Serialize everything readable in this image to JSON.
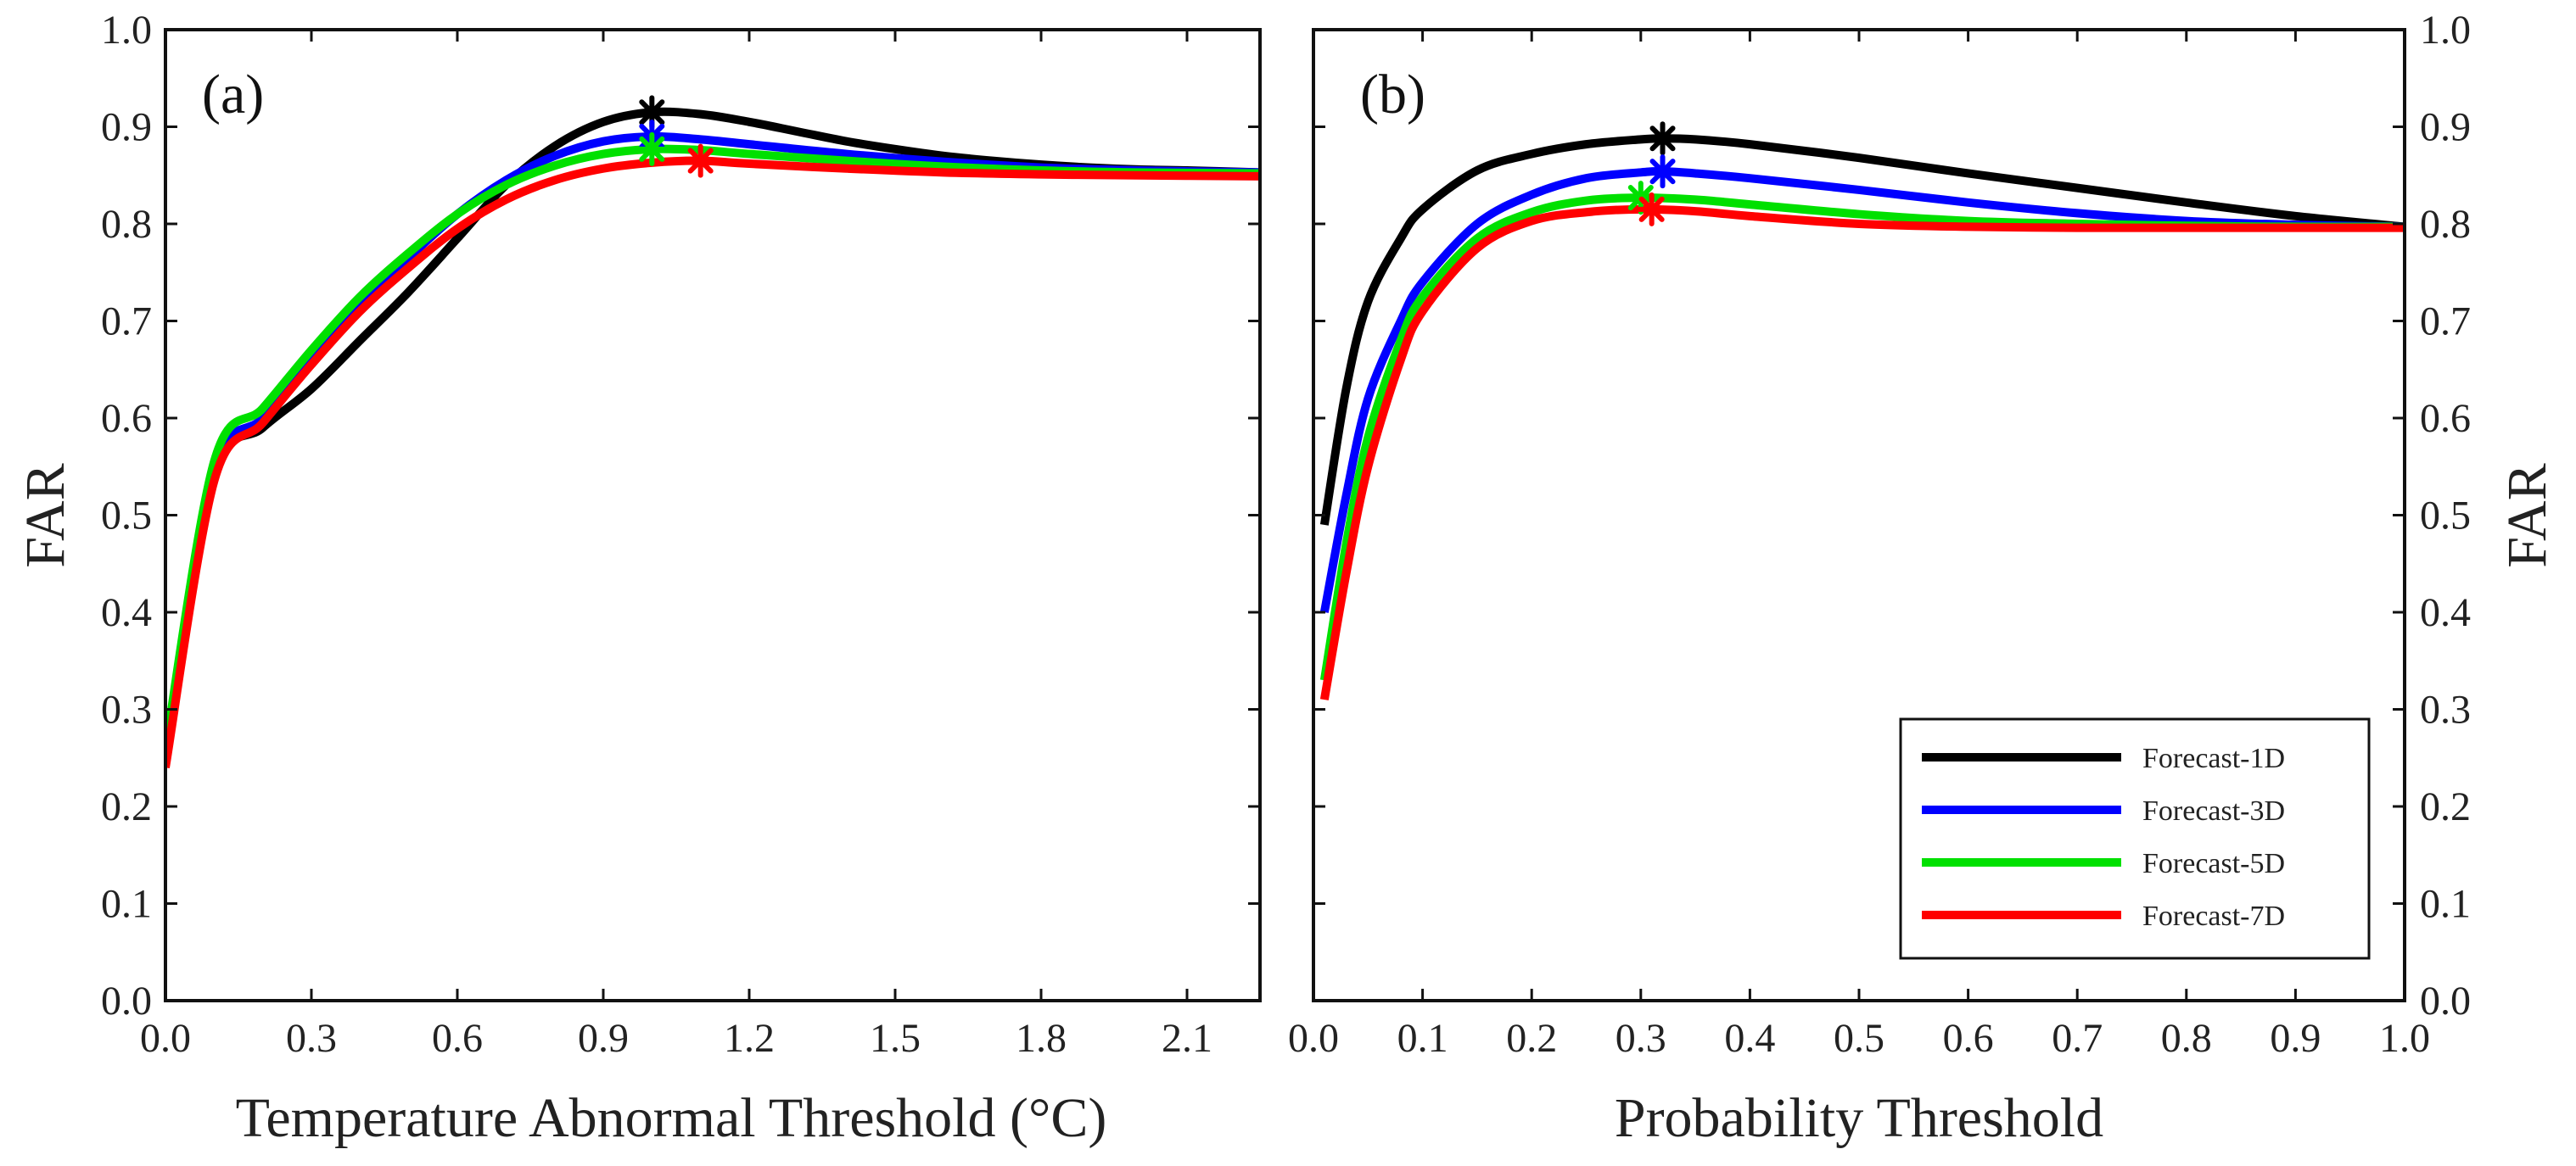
{
  "colors": {
    "Forecast-1D": "#000000",
    "Forecast-3D": "#0000ff",
    "Forecast-5D": "#00e000",
    "Forecast-7D": "#ff0000"
  },
  "chart_data": [
    {
      "type": "line",
      "panel_label": "(a)",
      "xlabel": "Temperature Abnormal Threshold (°C)",
      "ylabel": "FAR",
      "ylabel_side": "left",
      "xlim": [
        0,
        2.25
      ],
      "ylim": [
        0,
        1.0
      ],
      "x_ticks": [
        "0.0",
        "0.3",
        "0.6",
        "0.9",
        "1.2",
        "1.5",
        "1.8",
        "2.1"
      ],
      "y_ticks": [
        "0.0",
        "0.1",
        "0.2",
        "0.3",
        "0.4",
        "0.5",
        "0.6",
        "0.7",
        "0.8",
        "0.9",
        "1.0"
      ],
      "grid": false,
      "series": [
        {
          "name": "Forecast-1D",
          "x": [
            0.0,
            0.1,
            0.2,
            0.3,
            0.4,
            0.5,
            0.6,
            0.7,
            0.8,
            0.9,
            1.0,
            1.1,
            1.2,
            1.3,
            1.4,
            1.5,
            1.6,
            1.7,
            1.8,
            1.9,
            2.0,
            2.1,
            2.25
          ],
          "y": [
            0.26,
            0.54,
            0.59,
            0.63,
            0.68,
            0.73,
            0.785,
            0.84,
            0.88,
            0.905,
            0.915,
            0.913,
            0.905,
            0.895,
            0.885,
            0.877,
            0.87,
            0.865,
            0.861,
            0.858,
            0.856,
            0.855,
            0.853
          ],
          "marker": {
            "x": 1.0,
            "y": 0.915
          }
        },
        {
          "name": "Forecast-3D",
          "x": [
            0.0,
            0.1,
            0.2,
            0.3,
            0.4,
            0.5,
            0.6,
            0.7,
            0.8,
            0.9,
            1.0,
            1.1,
            1.2,
            1.4,
            1.6,
            1.8,
            2.0,
            2.25
          ],
          "y": [
            0.25,
            0.545,
            0.6,
            0.66,
            0.715,
            0.765,
            0.81,
            0.845,
            0.87,
            0.885,
            0.89,
            0.887,
            0.882,
            0.872,
            0.864,
            0.858,
            0.855,
            0.853
          ],
          "marker": {
            "x": 1.0,
            "y": 0.89
          }
        },
        {
          "name": "Forecast-5D",
          "x": [
            0.0,
            0.1,
            0.2,
            0.3,
            0.4,
            0.5,
            0.6,
            0.7,
            0.8,
            0.9,
            1.0,
            1.1,
            1.2,
            1.4,
            1.6,
            1.8,
            2.0,
            2.25
          ],
          "y": [
            0.26,
            0.555,
            0.61,
            0.67,
            0.725,
            0.77,
            0.81,
            0.84,
            0.86,
            0.872,
            0.877,
            0.876,
            0.872,
            0.865,
            0.859,
            0.855,
            0.853,
            0.852
          ],
          "marker": {
            "x": 1.0,
            "y": 0.877
          }
        },
        {
          "name": "Forecast-7D",
          "x": [
            0.0,
            0.1,
            0.2,
            0.3,
            0.4,
            0.5,
            0.6,
            0.7,
            0.8,
            0.9,
            1.0,
            1.1,
            1.2,
            1.4,
            1.6,
            1.8,
            2.0,
            2.25
          ],
          "y": [
            0.24,
            0.535,
            0.595,
            0.655,
            0.71,
            0.755,
            0.795,
            0.825,
            0.845,
            0.857,
            0.863,
            0.865,
            0.862,
            0.857,
            0.853,
            0.851,
            0.85,
            0.849
          ],
          "marker": {
            "x": 1.1,
            "y": 0.865
          }
        }
      ]
    },
    {
      "type": "line",
      "panel_label": "(b)",
      "xlabel": "Probability Threshold",
      "ylabel": "FAR",
      "ylabel_side": "right",
      "xlim": [
        0,
        1.0
      ],
      "ylim": [
        0,
        1.0
      ],
      "x_ticks": [
        "0.0",
        "0.1",
        "0.2",
        "0.3",
        "0.4",
        "0.5",
        "0.6",
        "0.7",
        "0.8",
        "0.9",
        "1.0"
      ],
      "y_ticks": [
        "0.0",
        "0.1",
        "0.2",
        "0.3",
        "0.4",
        "0.5",
        "0.6",
        "0.7",
        "0.8",
        "0.9",
        "1.0"
      ],
      "grid": false,
      "legend_position": "bottom-right",
      "series": [
        {
          "name": "Forecast-1D",
          "x": [
            0.01,
            0.03,
            0.05,
            0.08,
            0.1,
            0.15,
            0.2,
            0.25,
            0.3,
            0.32,
            0.35,
            0.4,
            0.5,
            0.6,
            0.7,
            0.8,
            0.9,
            1.0
          ],
          "y": [
            0.49,
            0.63,
            0.72,
            0.785,
            0.815,
            0.855,
            0.872,
            0.882,
            0.887,
            0.888,
            0.887,
            0.882,
            0.868,
            0.852,
            0.837,
            0.822,
            0.808,
            0.797
          ],
          "marker": {
            "x": 0.32,
            "y": 0.888
          }
        },
        {
          "name": "Forecast-3D",
          "x": [
            0.01,
            0.03,
            0.05,
            0.08,
            0.1,
            0.15,
            0.2,
            0.25,
            0.3,
            0.32,
            0.35,
            0.4,
            0.5,
            0.6,
            0.7,
            0.8,
            0.9,
            1.0
          ],
          "y": [
            0.4,
            0.52,
            0.62,
            0.7,
            0.74,
            0.8,
            0.83,
            0.847,
            0.853,
            0.854,
            0.852,
            0.847,
            0.835,
            0.822,
            0.811,
            0.803,
            0.799,
            0.797
          ],
          "marker": {
            "x": 0.32,
            "y": 0.854
          }
        },
        {
          "name": "Forecast-5D",
          "x": [
            0.01,
            0.03,
            0.05,
            0.08,
            0.1,
            0.15,
            0.2,
            0.25,
            0.3,
            0.35,
            0.4,
            0.5,
            0.6,
            0.7,
            0.8,
            0.9,
            1.0
          ],
          "y": [
            0.33,
            0.47,
            0.58,
            0.68,
            0.725,
            0.785,
            0.812,
            0.824,
            0.827,
            0.825,
            0.82,
            0.81,
            0.803,
            0.8,
            0.798,
            0.797,
            0.797
          ],
          "marker": {
            "x": 0.3,
            "y": 0.827
          }
        },
        {
          "name": "Forecast-7D",
          "x": [
            0.01,
            0.03,
            0.05,
            0.08,
            0.1,
            0.15,
            0.2,
            0.25,
            0.3,
            0.35,
            0.4,
            0.5,
            0.6,
            0.7,
            0.8,
            0.9,
            1.0
          ],
          "y": [
            0.31,
            0.44,
            0.55,
            0.66,
            0.71,
            0.775,
            0.803,
            0.812,
            0.815,
            0.813,
            0.808,
            0.8,
            0.797,
            0.796,
            0.796,
            0.796,
            0.796
          ],
          "marker": {
            "x": 0.31,
            "y": 0.815
          }
        }
      ]
    }
  ]
}
